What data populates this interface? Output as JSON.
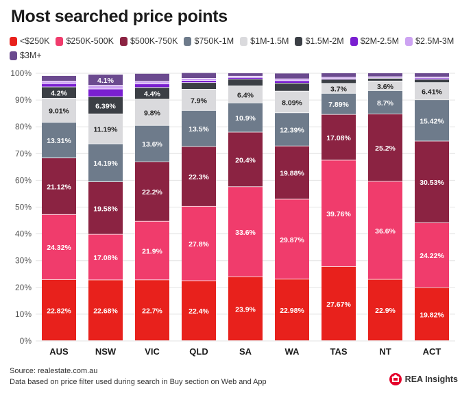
{
  "title": "Most searched price points",
  "footer": {
    "source": "Source: realestate.com.au",
    "note": "Data based on price filter used during search in Buy section on Web and App",
    "brand": "REA Insights"
  },
  "chart_data": {
    "type": "bar",
    "stacked": true,
    "title": "Most searched price points",
    "ylim": [
      0,
      100
    ],
    "y_ticks": [
      "0%",
      "10%",
      "20%",
      "30%",
      "40%",
      "50%",
      "60%",
      "70%",
      "80%",
      "90%",
      "100%"
    ],
    "grid": true,
    "legend_position": "top",
    "categories": [
      "AUS",
      "NSW",
      "VIC",
      "QLD",
      "SA",
      "WA",
      "TAS",
      "NT",
      "ACT"
    ],
    "series": [
      {
        "name": "<$250K",
        "color": "#e8211c",
        "values": [
          22.82,
          22.68,
          22.7,
          22.4,
          23.9,
          22.98,
          27.67,
          22.9,
          19.82
        ],
        "labels": [
          "22.82%",
          "22.68%",
          "22.7%",
          "22.4%",
          "23.9%",
          "22.98%",
          "27.67%",
          "22.9%",
          "19.82%"
        ]
      },
      {
        "name": "$250K-500K",
        "color": "#f03c6c",
        "values": [
          24.32,
          17.08,
          21.9,
          27.8,
          33.6,
          29.87,
          39.76,
          36.6,
          24.22
        ],
        "labels": [
          "24.32%",
          "17.08%",
          "21.9%",
          "27.8%",
          "33.6%",
          "29.87%",
          "39.76%",
          "36.6%",
          "24.22%"
        ]
      },
      {
        "name": "$500K-750K",
        "color": "#8b2342",
        "values": [
          21.12,
          19.58,
          22.2,
          22.3,
          20.4,
          19.88,
          17.08,
          25.2,
          30.53
        ],
        "labels": [
          "21.12%",
          "19.58%",
          "22.2%",
          "22.3%",
          "20.4%",
          "19.88%",
          "17.08%",
          "25.2%",
          "30.53%"
        ]
      },
      {
        "name": "$750K-1M",
        "color": "#6e7b8b",
        "values": [
          13.31,
          14.19,
          13.6,
          13.5,
          10.9,
          12.39,
          7.89,
          8.7,
          15.42
        ],
        "labels": [
          "13.31%",
          "14.19%",
          "13.6%",
          "13.5%",
          "10.9%",
          "12.39%",
          "7.89%",
          "8.7%",
          "15.42%"
        ]
      },
      {
        "name": "$1M-1.5M",
        "color": "#dadadd",
        "values": [
          9.01,
          11.19,
          9.8,
          7.9,
          6.4,
          8.09,
          3.7,
          3.6,
          6.41
        ],
        "labels": [
          "9.01%",
          "11.19%",
          "9.8%",
          "7.9%",
          "6.4%",
          "8.09%",
          "3.7%",
          "3.6%",
          "6.41%"
        ]
      },
      {
        "name": "$1.5M-2M",
        "color": "#3b3f45",
        "values": [
          4.2,
          6.39,
          4.4,
          2.5,
          2.5,
          3.0,
          1.5,
          1.0,
          1.2
        ],
        "labels": [
          "4.2%",
          "6.39%",
          "4.4%",
          "",
          "",
          "",
          "",
          "",
          ""
        ]
      },
      {
        "name": "$2M-2.5M",
        "color": "#7a1fd1",
        "values": [
          1.2,
          2.9,
          1.3,
          0.8,
          0.6,
          0.9,
          0.4,
          0.3,
          0.5
        ],
        "labels": [
          "",
          "",
          "",
          "",
          "",
          "",
          "",
          "",
          ""
        ]
      },
      {
        "name": "$2.5M-3M",
        "color": "#cda3f2",
        "values": [
          1.0,
          1.4,
          1.0,
          0.8,
          0.5,
          0.7,
          0.4,
          0.3,
          0.4
        ],
        "labels": [
          "",
          "",
          "",
          "",
          "",
          "",
          "",
          "",
          ""
        ]
      },
      {
        "name": "$3M+",
        "color": "#6b4a8f",
        "values": [
          2.02,
          4.1,
          2.9,
          2.1,
          1.2,
          2.1,
          1.6,
          1.4,
          1.5
        ],
        "labels": [
          "",
          "4.1%",
          "",
          "",
          "",
          "",
          "",
          "",
          ""
        ]
      }
    ]
  }
}
